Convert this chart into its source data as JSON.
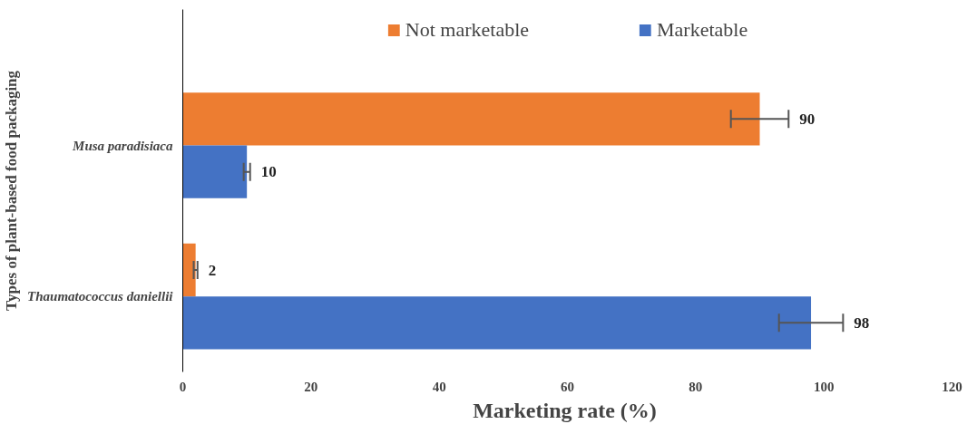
{
  "chart_data": {
    "type": "bar",
    "orientation": "horizontal",
    "categories": [
      "Musa paradisiaca",
      "Thaumatococcus daniellii"
    ],
    "series": [
      {
        "name": "Not marketable",
        "color": "#ed7d31",
        "values": [
          90,
          2
        ],
        "errors": [
          4.5,
          0.3
        ]
      },
      {
        "name": "Marketable",
        "color": "#4472c4",
        "values": [
          10,
          98
        ],
        "errors": [
          0.5,
          5
        ]
      }
    ],
    "xlabel": "Marketing rate  (%)",
    "ylabel": "Types of plant-based food packaging",
    "xlim": [
      0,
      120
    ],
    "xticks": [
      0,
      20,
      40,
      60,
      80,
      100,
      120
    ],
    "data_labels": true,
    "legend": "top",
    "grid": false
  }
}
